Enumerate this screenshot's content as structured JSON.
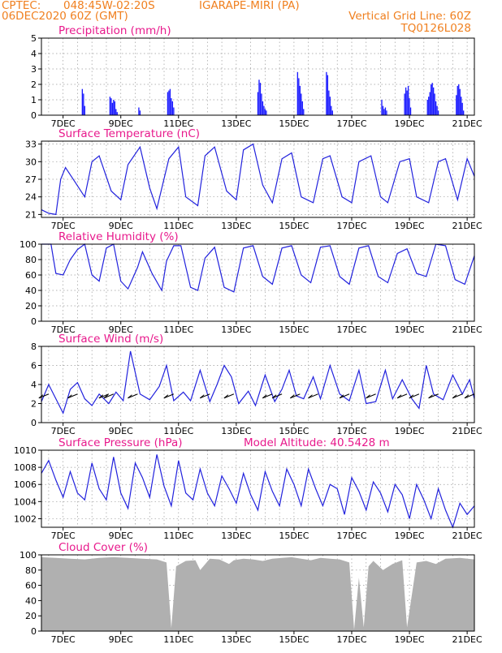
{
  "header": {
    "source": "CPTEC:",
    "coords": "048:45W-02:20S",
    "station": "IGARAPE-MIRI (PA)",
    "run": "06DEC2020 60Z (GMT)",
    "grid_note": "Vertical Grid Line: 60Z",
    "model_id": "TQ0126L028"
  },
  "x_axis": {
    "start_label": "06DEC",
    "hours": 360,
    "tick_labels": [
      "7DEC",
      "9DEC",
      "11DEC",
      "13DEC",
      "15DEC",
      "17DEC",
      "19DEC",
      "21DEC"
    ]
  },
  "colors": {
    "series": "#2222dd",
    "bars": "#1a1aff",
    "cloud": "#b0b0b0",
    "title": "#e8198c",
    "header": "#f08020"
  },
  "chart_data": [
    {
      "type": "bar",
      "title": "Precipitation (mm/h)",
      "ylim": [
        0,
        5
      ],
      "yticks": [
        "0",
        "1",
        "2",
        "3",
        "4",
        "5"
      ],
      "x_hours": [
        34,
        35,
        36,
        57,
        58,
        59,
        60,
        61,
        62,
        63,
        81,
        82,
        105,
        106,
        107,
        108,
        109,
        110,
        180,
        181,
        182,
        183,
        184,
        185,
        186,
        187,
        213,
        214,
        215,
        216,
        217,
        218,
        237,
        238,
        239,
        240,
        241,
        242,
        283,
        284,
        285,
        286,
        287,
        302,
        303,
        304,
        305,
        306,
        307,
        321,
        322,
        323,
        324,
        325,
        326,
        327,
        328,
        329,
        330,
        345,
        346,
        347,
        348,
        349,
        350,
        351
      ],
      "values": [
        1.7,
        1.4,
        0.6,
        1.2,
        1.1,
        0.8,
        1.0,
        0.9,
        0.4,
        0.2,
        0.5,
        0.3,
        1.5,
        1.6,
        1.7,
        1.1,
        0.9,
        0.5,
        1.5,
        2.3,
        2.1,
        1.4,
        0.9,
        0.6,
        0.4,
        0.3,
        2.8,
        2.4,
        1.9,
        1.4,
        0.9,
        0.4,
        2.8,
        2.6,
        1.6,
        1.2,
        0.6,
        0.3,
        1.0,
        0.6,
        0.4,
        0.5,
        0.3,
        1.4,
        1.8,
        1.6,
        1.9,
        1.1,
        0.5,
        1.0,
        1.2,
        1.5,
        2.0,
        2.1,
        1.8,
        1.4,
        0.9,
        0.6,
        0.3,
        1.3,
        1.9,
        2.0,
        1.7,
        1.2,
        0.8,
        0.3
      ]
    },
    {
      "type": "line",
      "title": "Surface Temperature (nC)",
      "ylim": [
        20.5,
        33.5
      ],
      "yticks": [
        "21",
        "24",
        "27",
        "30",
        "33"
      ],
      "x_hours": [
        0,
        6,
        12,
        16,
        20,
        28,
        36,
        42,
        48,
        58,
        66,
        72,
        82,
        90,
        96,
        106,
        114,
        120,
        130,
        136,
        144,
        154,
        162,
        168,
        176,
        184,
        192,
        200,
        208,
        216,
        226,
        234,
        240,
        250,
        258,
        264,
        274,
        282,
        288,
        298,
        306,
        312,
        322,
        330,
        336,
        346,
        354,
        360
      ],
      "values": [
        21.8,
        21.2,
        21.0,
        27.0,
        29.0,
        26.5,
        24.0,
        30.0,
        31.0,
        25.0,
        23.5,
        29.5,
        32.5,
        25.5,
        22.0,
        30.5,
        32.5,
        24.0,
        22.5,
        31.0,
        32.5,
        25.0,
        23.5,
        32.0,
        33.0,
        26.0,
        23.0,
        30.5,
        31.5,
        24.0,
        23.0,
        30.5,
        31.0,
        24.0,
        23.0,
        30.0,
        31.0,
        24.0,
        23.0,
        30.0,
        30.5,
        24.0,
        23.0,
        30.0,
        30.5,
        23.5,
        30.5,
        27.5
      ]
    },
    {
      "type": "line",
      "title": "Relative Humidity (%)",
      "ylim": [
        0,
        100
      ],
      "yticks": [
        "0",
        "20",
        "40",
        "60",
        "80",
        "100"
      ],
      "x_hours": [
        0,
        8,
        12,
        18,
        24,
        30,
        36,
        42,
        48,
        54,
        60,
        66,
        72,
        80,
        84,
        92,
        100,
        104,
        110,
        116,
        124,
        130,
        136,
        144,
        152,
        160,
        168,
        176,
        184,
        192,
        200,
        208,
        216,
        224,
        232,
        240,
        248,
        256,
        264,
        272,
        280,
        288,
        296,
        304,
        312,
        320,
        328,
        336,
        344,
        352,
        360
      ],
      "values": [
        100,
        100,
        62,
        60,
        80,
        93,
        100,
        60,
        52,
        95,
        100,
        52,
        42,
        70,
        90,
        62,
        40,
        78,
        98,
        98,
        44,
        40,
        82,
        96,
        44,
        38,
        95,
        98,
        58,
        48,
        95,
        98,
        60,
        50,
        96,
        98,
        58,
        48,
        95,
        98,
        58,
        50,
        88,
        94,
        62,
        58,
        100,
        98,
        54,
        48,
        85
      ]
    },
    {
      "type": "line",
      "title": "Surface Wind (m/s)",
      "ylim": [
        0,
        8
      ],
      "yticks": [
        "0",
        "2",
        "4",
        "6",
        "8"
      ],
      "x_hours": [
        0,
        6,
        12,
        18,
        24,
        30,
        36,
        42,
        48,
        56,
        62,
        68,
        74,
        82,
        90,
        98,
        104,
        110,
        118,
        124,
        132,
        140,
        146,
        152,
        158,
        164,
        172,
        178,
        186,
        194,
        200,
        206,
        212,
        218,
        226,
        232,
        240,
        248,
        256,
        264,
        270,
        278,
        286,
        292,
        300,
        308,
        314,
        320,
        326,
        334,
        342,
        350,
        356,
        360
      ],
      "values": [
        2.2,
        4.0,
        2.5,
        1.0,
        3.5,
        4.2,
        2.5,
        1.8,
        3.0,
        2.0,
        3.2,
        2.3,
        7.5,
        3.0,
        2.4,
        3.8,
        6.0,
        2.3,
        3.2,
        2.3,
        5.5,
        2.2,
        4.0,
        6.0,
        4.8,
        2.0,
        3.3,
        1.8,
        5.0,
        2.2,
        3.5,
        5.5,
        2.8,
        2.5,
        4.8,
        2.5,
        6.0,
        3.0,
        2.3,
        5.5,
        2.0,
        2.2,
        5.5,
        2.5,
        4.5,
        2.5,
        1.5,
        6.0,
        3.0,
        2.4,
        5.0,
        3.0,
        4.5,
        2.5
      ],
      "arrow_hours": [
        6,
        30,
        56,
        60,
        80,
        110,
        140,
        160,
        192,
        200,
        215,
        230,
        256,
        278,
        304,
        314,
        330,
        350,
        360
      ]
    },
    {
      "type": "line",
      "title": "Surface Pressure (hPa)",
      "annotation": "Model Altitude: 40.5428 m",
      "ylim": [
        1001,
        1010
      ],
      "yticks": [
        "1002",
        "1004",
        "1006",
        "1008",
        "1010"
      ],
      "x_hours": [
        0,
        6,
        12,
        18,
        24,
        30,
        36,
        42,
        48,
        54,
        60,
        66,
        72,
        78,
        84,
        90,
        96,
        102,
        108,
        114,
        120,
        126,
        132,
        138,
        144,
        150,
        156,
        162,
        168,
        174,
        180,
        186,
        192,
        198,
        204,
        210,
        216,
        222,
        228,
        234,
        240,
        246,
        252,
        258,
        264,
        270,
        276,
        282,
        288,
        294,
        300,
        306,
        312,
        318,
        324,
        330,
        336,
        342,
        348,
        354,
        360
      ],
      "values": [
        1007.3,
        1008.8,
        1006.5,
        1004.5,
        1007.5,
        1005.0,
        1004.2,
        1008.5,
        1005.5,
        1004.2,
        1009.2,
        1005.0,
        1003.2,
        1008.5,
        1006.8,
        1004.5,
        1009.5,
        1005.8,
        1003.5,
        1008.8,
        1005.0,
        1004.2,
        1007.8,
        1005.0,
        1003.5,
        1007.0,
        1005.5,
        1003.8,
        1007.3,
        1004.8,
        1003.0,
        1007.5,
        1005.2,
        1003.5,
        1007.8,
        1006.0,
        1003.5,
        1007.8,
        1005.5,
        1003.5,
        1006.0,
        1005.5,
        1002.5,
        1006.8,
        1005.2,
        1003.0,
        1006.3,
        1005.0,
        1002.8,
        1006.0,
        1004.8,
        1002.0,
        1006.0,
        1004.2,
        1002.0,
        1005.5,
        1003.0,
        1001.0,
        1003.8,
        1002.5,
        1003.5
      ]
    },
    {
      "type": "bar",
      "title": "Cloud Cover (%)",
      "ylim": [
        0,
        100
      ],
      "yticks": [
        "0",
        "20",
        "40",
        "60",
        "80",
        "100"
      ],
      "x_hours": [
        0,
        12,
        24,
        36,
        48,
        60,
        72,
        84,
        96,
        104,
        108,
        112,
        120,
        128,
        132,
        140,
        148,
        156,
        160,
        168,
        176,
        184,
        192,
        200,
        208,
        216,
        224,
        232,
        240,
        248,
        256,
        260,
        264,
        268,
        272,
        276,
        284,
        292,
        300,
        304,
        312,
        320,
        328,
        336,
        348,
        360
      ],
      "values": [
        97,
        96,
        95,
        94,
        96,
        97,
        96,
        95,
        94,
        90,
        4,
        85,
        92,
        93,
        80,
        95,
        94,
        88,
        93,
        95,
        94,
        92,
        95,
        96,
        97,
        95,
        93,
        96,
        95,
        94,
        90,
        2,
        70,
        5,
        85,
        92,
        80,
        88,
        93,
        5,
        90,
        92,
        88,
        95,
        96,
        94
      ]
    }
  ]
}
